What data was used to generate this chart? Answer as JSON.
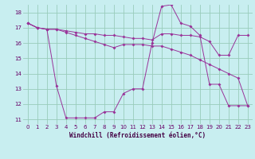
{
  "xlabel": "Windchill (Refroidissement éolien,°C)",
  "background_color": "#c8eef0",
  "grid_color": "#99ccbb",
  "line_color": "#993399",
  "x_min": 0,
  "x_max": 23,
  "y_min": 11,
  "y_max": 18,
  "yticks": [
    11,
    12,
    13,
    14,
    15,
    16,
    17,
    18
  ],
  "line1_x": [
    0,
    1,
    2,
    3,
    4,
    5,
    6,
    7,
    8,
    9,
    10,
    11,
    12,
    13,
    14,
    15,
    16,
    17,
    18,
    19,
    20,
    21,
    22,
    23
  ],
  "line1_y": [
    17.3,
    17.0,
    16.9,
    16.9,
    16.8,
    16.7,
    16.6,
    16.6,
    16.5,
    16.5,
    16.4,
    16.3,
    16.3,
    16.2,
    16.6,
    16.6,
    16.5,
    16.5,
    16.4,
    16.1,
    15.2,
    15.2,
    16.5,
    16.5
  ],
  "line2_x": [
    0,
    1,
    2,
    3,
    4,
    5,
    6,
    7,
    8,
    9,
    10,
    11,
    12,
    13,
    14,
    15,
    16,
    17,
    18,
    19,
    20,
    21,
    22,
    23
  ],
  "line2_y": [
    17.3,
    17.0,
    16.9,
    16.9,
    16.7,
    16.5,
    16.3,
    16.1,
    15.9,
    15.7,
    15.9,
    15.9,
    15.9,
    15.8,
    15.8,
    15.6,
    15.4,
    15.2,
    14.9,
    14.6,
    14.3,
    14.0,
    13.7,
    11.9
  ],
  "line3_x": [
    0,
    1,
    2,
    3,
    4,
    5,
    6,
    7,
    8,
    9,
    10,
    11,
    12,
    13,
    14,
    15,
    16,
    17,
    18,
    19,
    20,
    21,
    22,
    23
  ],
  "line3_y": [
    17.3,
    17.0,
    16.9,
    13.2,
    11.1,
    11.1,
    11.1,
    11.1,
    11.5,
    11.5,
    12.7,
    13.0,
    13.0,
    16.0,
    18.4,
    18.5,
    17.3,
    17.1,
    16.5,
    13.3,
    13.3,
    11.9,
    11.9,
    11.9
  ]
}
